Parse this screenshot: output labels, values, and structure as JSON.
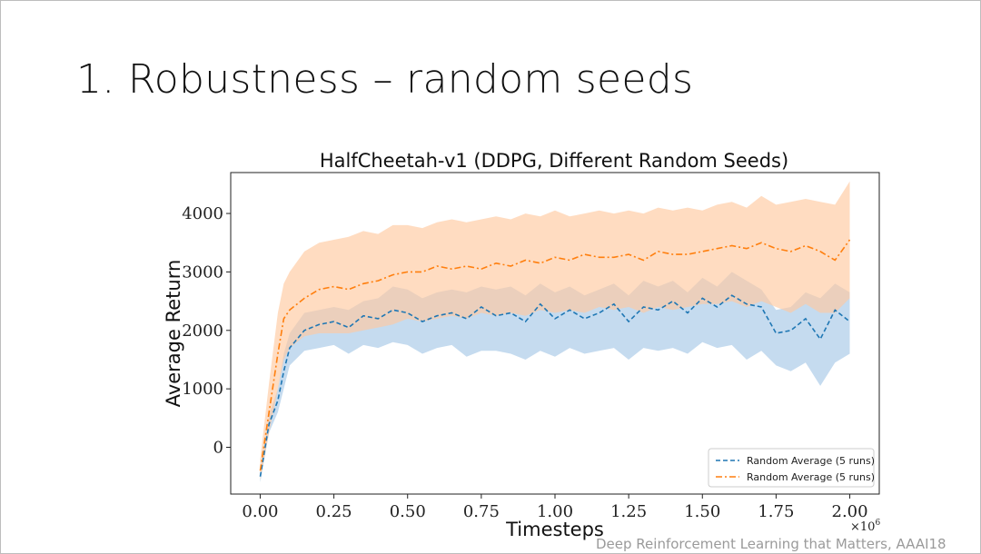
{
  "slide": {
    "title": "1. Robustness – random seeds",
    "citation": "Deep Reinforcement Learning that Matters, AAAI18"
  },
  "chart_data": {
    "type": "line",
    "title": "HalfCheetah-v1 (DDPG, Different Random Seeds)",
    "xlabel": "Timesteps",
    "ylabel": "Average Return",
    "x_multiplier_label": "×10",
    "x_multiplier_exponent": "6",
    "xlim": [
      -0.1,
      2.1
    ],
    "ylim": [
      -800,
      4700
    ],
    "x_ticks": [
      0.0,
      0.25,
      0.5,
      0.75,
      1.0,
      1.25,
      1.5,
      1.75,
      2.0
    ],
    "x_tick_labels": [
      "0.00",
      "0.25",
      "0.50",
      "0.75",
      "1.00",
      "1.25",
      "1.50",
      "1.75",
      "2.00"
    ],
    "y_ticks": [
      0,
      1000,
      2000,
      3000,
      4000
    ],
    "y_tick_labels": [
      "0",
      "1000",
      "2000",
      "3000",
      "4000"
    ],
    "legend_position": "lower-right",
    "x": [
      0.0,
      0.03,
      0.06,
      0.08,
      0.1,
      0.15,
      0.2,
      0.25,
      0.3,
      0.35,
      0.4,
      0.45,
      0.5,
      0.55,
      0.6,
      0.65,
      0.7,
      0.75,
      0.8,
      0.85,
      0.9,
      0.95,
      1.0,
      1.05,
      1.1,
      1.15,
      1.2,
      1.25,
      1.3,
      1.35,
      1.4,
      1.45,
      1.5,
      1.55,
      1.6,
      1.65,
      1.7,
      1.75,
      1.8,
      1.85,
      1.9,
      1.95,
      2.0
    ],
    "series": [
      {
        "name": "Random Average (5 runs)",
        "color": "#1f77b4",
        "band_color": "#a6c8e6",
        "dash": "dashed",
        "mean": [
          -500,
          400,
          800,
          1300,
          1700,
          2000,
          2100,
          2150,
          2050,
          2250,
          2200,
          2350,
          2300,
          2150,
          2250,
          2300,
          2200,
          2400,
          2250,
          2300,
          2150,
          2450,
          2200,
          2350,
          2200,
          2300,
          2450,
          2150,
          2400,
          2350,
          2500,
          2300,
          2550,
          2400,
          2600,
          2450,
          2400,
          1950,
          2000,
          2200,
          1850,
          2350,
          2150
        ],
        "lower": [
          -600,
          250,
          600,
          1000,
          1400,
          1650,
          1700,
          1750,
          1600,
          1750,
          1700,
          1800,
          1750,
          1600,
          1700,
          1750,
          1550,
          1650,
          1650,
          1600,
          1500,
          1650,
          1550,
          1700,
          1600,
          1650,
          1700,
          1500,
          1700,
          1650,
          1700,
          1600,
          1800,
          1700,
          1750,
          1500,
          1650,
          1400,
          1300,
          1450,
          1050,
          1450,
          1600
        ],
        "upper": [
          -400,
          550,
          1000,
          1600,
          1950,
          2300,
          2350,
          2400,
          2350,
          2500,
          2550,
          2750,
          2700,
          2550,
          2650,
          2700,
          2650,
          2750,
          2700,
          2750,
          2600,
          2800,
          2650,
          2750,
          2600,
          2700,
          2800,
          2600,
          2850,
          2750,
          2850,
          2650,
          2900,
          2750,
          3000,
          2850,
          2700,
          2350,
          2400,
          2650,
          2550,
          2800,
          2650
        ]
      },
      {
        "name": "Random Average (5 runs)",
        "color": "#ff7f0e",
        "band_color": "#ffc9a0",
        "dash": "dashdot",
        "mean": [
          -400,
          600,
          1600,
          2200,
          2350,
          2550,
          2700,
          2750,
          2700,
          2800,
          2850,
          2950,
          3000,
          3000,
          3100,
          3050,
          3100,
          3050,
          3150,
          3100,
          3200,
          3150,
          3250,
          3200,
          3300,
          3250,
          3250,
          3300,
          3200,
          3350,
          3300,
          3300,
          3350,
          3400,
          3450,
          3400,
          3500,
          3400,
          3350,
          3450,
          3350,
          3200,
          3550
        ],
        "lower": [
          -550,
          250,
          1000,
          1500,
          1700,
          1900,
          1950,
          1950,
          1950,
          2000,
          2050,
          2100,
          2200,
          2150,
          2200,
          2250,
          2200,
          2300,
          2250,
          2300,
          2250,
          2350,
          2300,
          2350,
          2300,
          2400,
          2350,
          2400,
          2300,
          2400,
          2350,
          2400,
          2450,
          2450,
          2500,
          2400,
          2500,
          2400,
          2300,
          2450,
          2300,
          2300,
          2550
        ],
        "upper": [
          -200,
          1100,
          2300,
          2800,
          3000,
          3350,
          3500,
          3550,
          3600,
          3700,
          3650,
          3800,
          3800,
          3750,
          3850,
          3900,
          3850,
          3900,
          3950,
          3900,
          4000,
          3950,
          4050,
          3950,
          4000,
          4050,
          4000,
          4050,
          4000,
          4100,
          4050,
          4100,
          4050,
          4150,
          4200,
          4100,
          4300,
          4150,
          4200,
          4250,
          4200,
          4150,
          4550
        ]
      }
    ]
  }
}
